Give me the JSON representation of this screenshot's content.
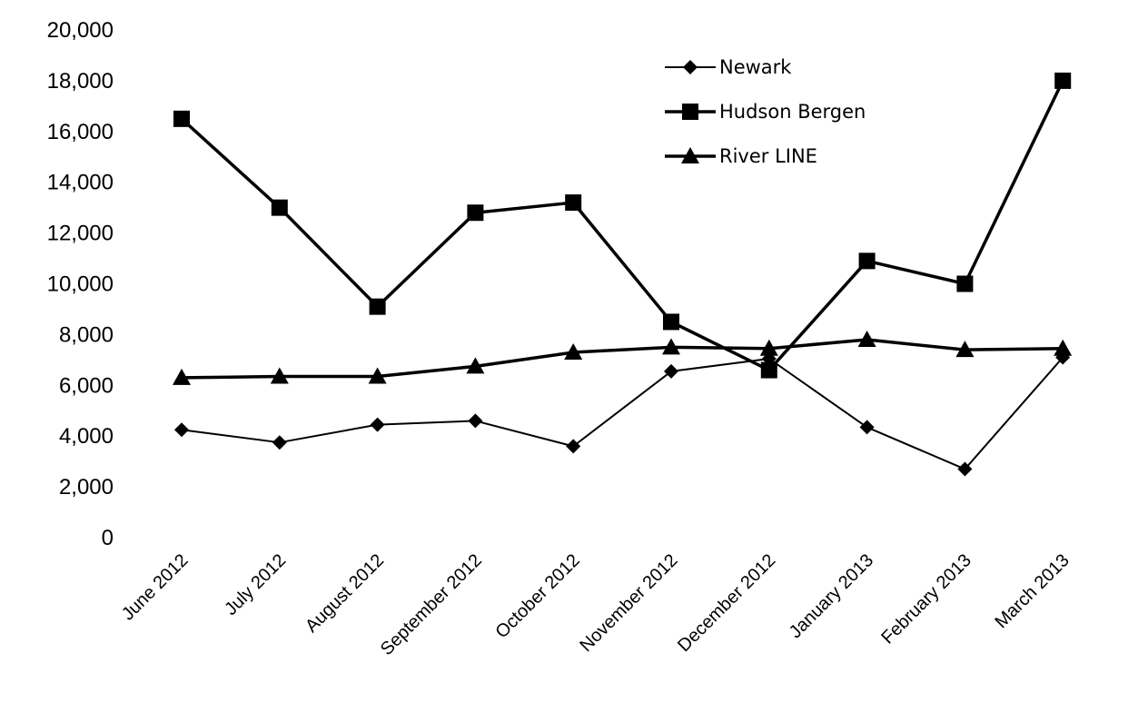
{
  "chart_data": {
    "type": "line",
    "title": "",
    "xlabel": "",
    "ylabel": "",
    "categories": [
      "June 2012",
      "July 2012",
      "August 2012",
      "September 2012",
      "October 2012",
      "November 2012",
      "December 2012",
      "January 2013",
      "February 2013",
      "March 2013"
    ],
    "ylim": [
      0,
      20000
    ],
    "yticks": [
      0,
      2000,
      4000,
      6000,
      8000,
      10000,
      12000,
      14000,
      16000,
      18000,
      20000
    ],
    "ytick_labels": [
      "0",
      "2,000",
      "4,000",
      "6,000",
      "8,000",
      "10,000",
      "12,000",
      "14,000",
      "16,000",
      "18,000",
      "20,000"
    ],
    "grid": false,
    "legend_position": "top-right",
    "series": [
      {
        "name": "Newark",
        "marker": "diamond",
        "line_width": "thin",
        "color": "#000000",
        "values": [
          4250,
          3750,
          4450,
          4600,
          3600,
          6550,
          7050,
          4350,
          2700,
          7100
        ]
      },
      {
        "name": "Hudson Bergen",
        "marker": "square",
        "line_width": "thick",
        "color": "#000000",
        "values": [
          16500,
          13000,
          9100,
          12800,
          13200,
          8500,
          6600,
          10900,
          10000,
          18000
        ]
      },
      {
        "name": "River LINE",
        "marker": "triangle",
        "line_width": "thick",
        "color": "#000000",
        "values": [
          6300,
          6350,
          6350,
          6750,
          7300,
          7500,
          7450,
          7800,
          7400,
          7450
        ]
      }
    ]
  }
}
